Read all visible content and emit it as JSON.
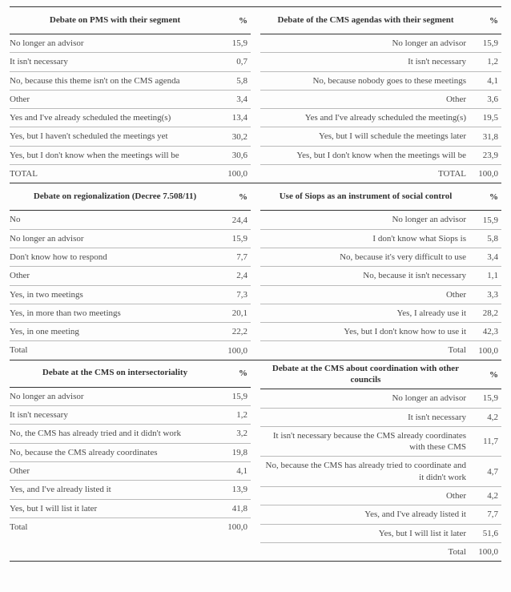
{
  "pct_label": "%",
  "blocks": [
    {
      "left": {
        "title": "Debate on PMS with their segment",
        "rows": [
          {
            "label": "No longer an advisor",
            "value": "15,9"
          },
          {
            "label": "It isn't necessary",
            "value": "0,7"
          },
          {
            "label": "No, because this theme isn't on the CMS agenda",
            "value": "5,8"
          },
          {
            "label": "Other",
            "value": "3,4"
          },
          {
            "label": "Yes and I've already scheduled the meeting(s)",
            "value": "13,4"
          },
          {
            "label": "Yes, but I haven't scheduled the meetings yet",
            "value": "30,2"
          },
          {
            "label": "Yes, but I don't know when the meetings will be",
            "value": "30,6"
          },
          {
            "label": "TOTAL",
            "value": "100,0"
          }
        ]
      },
      "right": {
        "title": "Debate of the CMS agendas with their segment",
        "rows": [
          {
            "label": "No longer an advisor",
            "value": "15,9"
          },
          {
            "label": "It isn't necessary",
            "value": "1,2"
          },
          {
            "label": "No, because nobody goes to these meetings",
            "value": "4,1"
          },
          {
            "label": "Other",
            "value": "3,6"
          },
          {
            "label": "Yes and I've already scheduled the meeting(s)",
            "value": "19,5"
          },
          {
            "label": "Yes, but I will schedule the meetings later",
            "value": "31,8"
          },
          {
            "label": "Yes, but I don't know when the meetings will be",
            "value": "23,9"
          },
          {
            "label": "TOTAL",
            "value": "100,0"
          }
        ]
      }
    },
    {
      "left": {
        "title": "Debate on regionalization (Decree 7.508/11)",
        "rows": [
          {
            "label": "No",
            "value": "24,4"
          },
          {
            "label": "No longer an advisor",
            "value": "15,9"
          },
          {
            "label": "Don't know how to respond",
            "value": "7,7"
          },
          {
            "label": "Other",
            "value": "2,4"
          },
          {
            "label": "Yes, in two meetings",
            "value": "7,3"
          },
          {
            "label": "Yes, in more than two meetings",
            "value": "20,1"
          },
          {
            "label": "Yes, in one meeting",
            "value": "22,2"
          },
          {
            "label": "Total",
            "value": "100,0"
          }
        ]
      },
      "right": {
        "title": "Use of Siops as an instrument of social control",
        "rows": [
          {
            "label": "No longer an advisor",
            "value": "15,9"
          },
          {
            "label": "I don't know what Siops is",
            "value": "5,8"
          },
          {
            "label": "No, because it's very difficult to use",
            "value": "3,4"
          },
          {
            "label": "No, because it isn't necessary",
            "value": "1,1"
          },
          {
            "label": "Other",
            "value": "3,3"
          },
          {
            "label": "Yes, I already use it",
            "value": "28,2"
          },
          {
            "label": "Yes, but I don't know how to use it",
            "value": "42,3"
          },
          {
            "label": "Total",
            "value": "100,0"
          }
        ]
      }
    },
    {
      "left": {
        "title": "Debate at the CMS on intersectoriality",
        "rows": [
          {
            "label": "No longer an advisor",
            "value": "15,9"
          },
          {
            "label": "It isn't necessary",
            "value": "1,2"
          },
          {
            "label": "No, the CMS has already tried and it didn't work",
            "value": "3,2"
          },
          {
            "label": "No, because the CMS already coordinates",
            "value": "19,8"
          },
          {
            "label": "Other",
            "value": "4,1"
          },
          {
            "label": "Yes, and I've already listed it",
            "value": "13,9"
          },
          {
            "label": "Yes, but I will list it later",
            "value": "41,8"
          },
          {
            "label": "Total",
            "value": "100,0"
          }
        ]
      },
      "right": {
        "title": "Debate at the CMS about coordination with other councils",
        "rows": [
          {
            "label": "No longer an advisor",
            "value": "15,9"
          },
          {
            "label": "It isn't necessary",
            "value": "4,2"
          },
          {
            "label": "It isn't necessary because the CMS already coordinates with these CMS",
            "value": "11,7"
          },
          {
            "label": "No, because the CMS has already tried to coordinate and it didn't work",
            "value": "4,7"
          },
          {
            "label": "Other",
            "value": "4,2"
          },
          {
            "label": "Yes, and I've already listed it",
            "value": "7,7"
          },
          {
            "label": "Yes, but I will list it later",
            "value": "51,6"
          },
          {
            "label": "Total",
            "value": "100,0"
          }
        ]
      }
    }
  ]
}
